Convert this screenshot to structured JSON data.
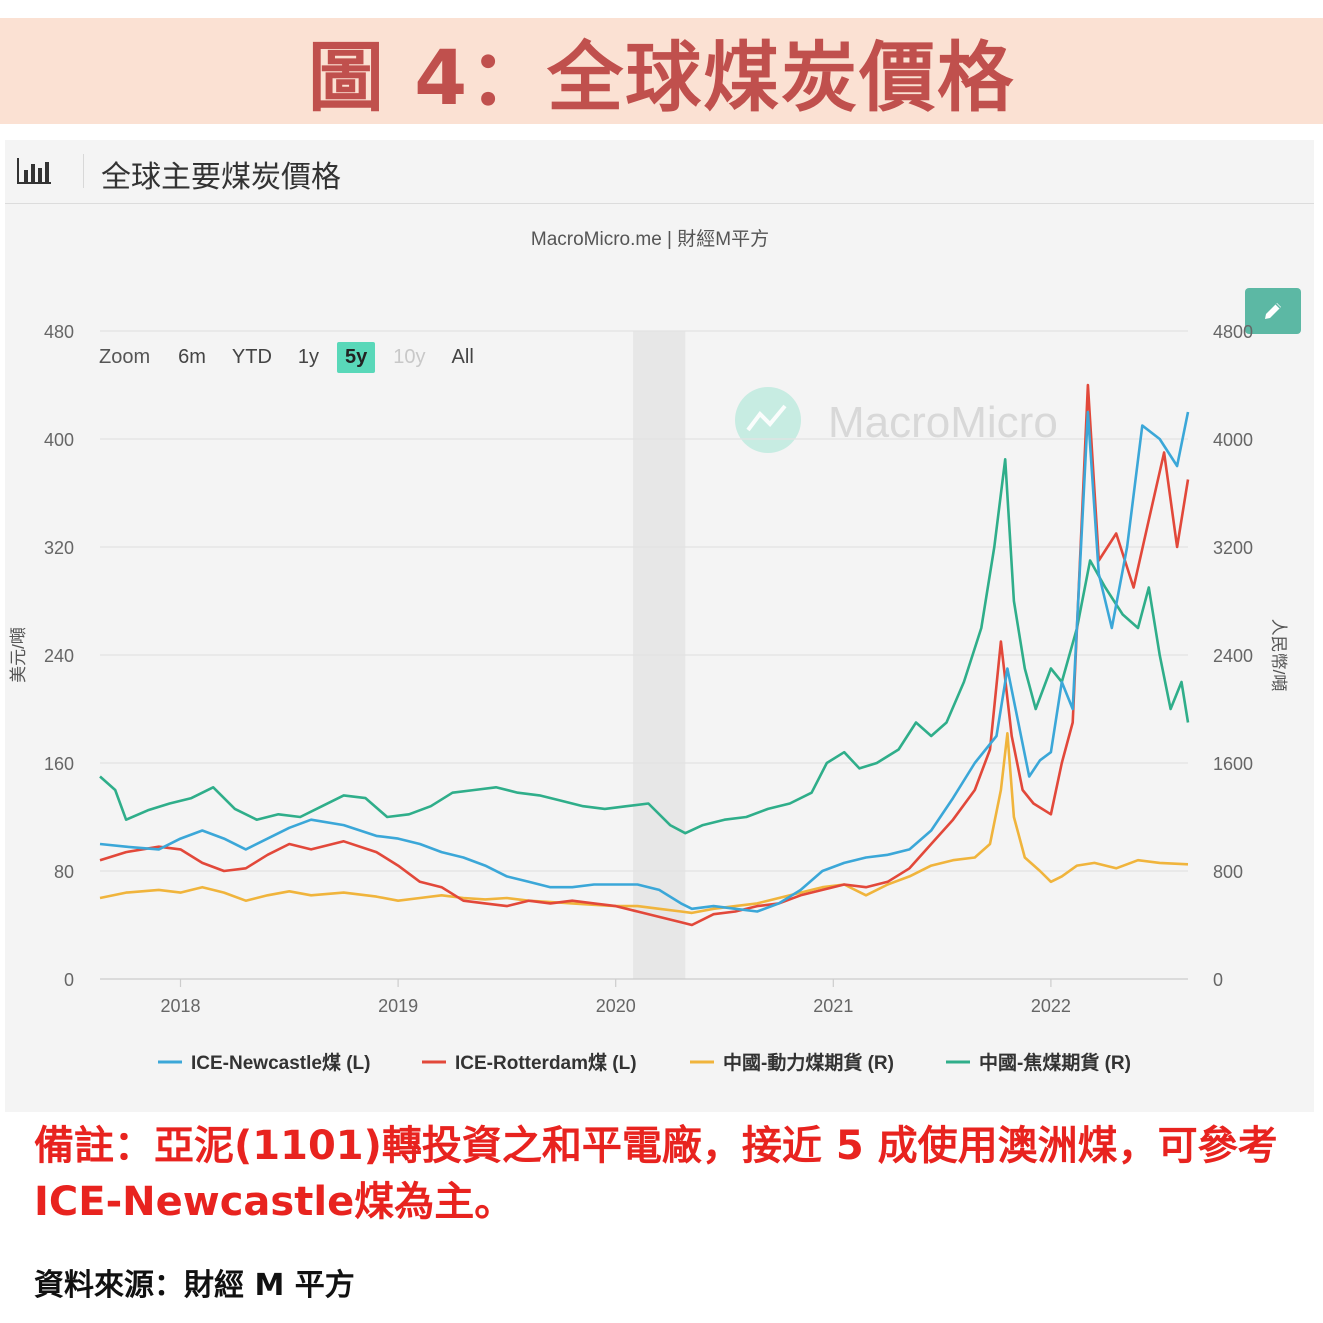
{
  "banner": {
    "title": "圖 4：全球煤炭價格"
  },
  "panel": {
    "title": "全球主要煤炭價格",
    "icon": "bar-chart-icon",
    "edit_icon": "pencil-icon"
  },
  "chart_credit": "MacroMicro.me | 財經M平方",
  "watermark": "MacroMicro",
  "zoom": {
    "label": "Zoom",
    "options": [
      "6m",
      "YTD",
      "1y",
      "5y",
      "10y",
      "All"
    ],
    "active": "5y",
    "disabled": [
      "10y"
    ]
  },
  "note": "備註：亞泥(1101)轉投資之和平電廠，接近 5 成使用澳洲煤，可參考 ICE-Newcastle煤為主。",
  "source": "資料來源：財經 M 平方",
  "colors": {
    "newcastle": "#3ba7d8",
    "rotterdam": "#e2483a",
    "thermal": "#f0b43c",
    "coking": "#2fae8a",
    "accent": "#5cb8a4",
    "note": "#e8231f",
    "title": "#c0504d"
  },
  "chart_data": {
    "type": "line",
    "xlabel": "",
    "ylabel_left": "美元/噸",
    "ylabel_right": "人民幣/噸",
    "xlim": [
      2017.63,
      2022.63
    ],
    "ylim_left": [
      0,
      480
    ],
    "ylim_right": [
      0,
      4800
    ],
    "y_ticks_left": [
      "0",
      "80",
      "160",
      "240",
      "320",
      "400",
      "480"
    ],
    "y_ticks_right": [
      "0",
      "800",
      "1600",
      "2400",
      "3200",
      "4000",
      "4800"
    ],
    "x_ticks": [
      {
        "x": 2018,
        "label": "2018"
      },
      {
        "x": 2019,
        "label": "2019"
      },
      {
        "x": 2020,
        "label": "2020"
      },
      {
        "x": 2021,
        "label": "2021"
      },
      {
        "x": 2022,
        "label": "2022"
      }
    ],
    "shaded_region": [
      2020.08,
      2020.32
    ],
    "grid": true,
    "legend_position": "bottom",
    "series": [
      {
        "name": "ICE-Newcastle煤 (L)",
        "axis": "left",
        "color": "#3ba7d8",
        "points": [
          [
            2017.63,
            100
          ],
          [
            2017.75,
            98
          ],
          [
            2017.9,
            96
          ],
          [
            2018.0,
            104
          ],
          [
            2018.1,
            110
          ],
          [
            2018.2,
            104
          ],
          [
            2018.3,
            96
          ],
          [
            2018.4,
            104
          ],
          [
            2018.5,
            112
          ],
          [
            2018.6,
            118
          ],
          [
            2018.75,
            114
          ],
          [
            2018.9,
            106
          ],
          [
            2019.0,
            104
          ],
          [
            2019.1,
            100
          ],
          [
            2019.2,
            94
          ],
          [
            2019.3,
            90
          ],
          [
            2019.4,
            84
          ],
          [
            2019.5,
            76
          ],
          [
            2019.6,
            72
          ],
          [
            2019.7,
            68
          ],
          [
            2019.8,
            68
          ],
          [
            2019.9,
            70
          ],
          [
            2020.0,
            70
          ],
          [
            2020.1,
            70
          ],
          [
            2020.2,
            66
          ],
          [
            2020.3,
            56
          ],
          [
            2020.35,
            52
          ],
          [
            2020.45,
            54
          ],
          [
            2020.55,
            52
          ],
          [
            2020.65,
            50
          ],
          [
            2020.75,
            56
          ],
          [
            2020.85,
            66
          ],
          [
            2020.95,
            80
          ],
          [
            2021.05,
            86
          ],
          [
            2021.15,
            90
          ],
          [
            2021.25,
            92
          ],
          [
            2021.35,
            96
          ],
          [
            2021.45,
            110
          ],
          [
            2021.55,
            134
          ],
          [
            2021.65,
            160
          ],
          [
            2021.75,
            180
          ],
          [
            2021.8,
            230
          ],
          [
            2021.85,
            190
          ],
          [
            2021.9,
            150
          ],
          [
            2021.95,
            162
          ],
          [
            2022.0,
            168
          ],
          [
            2022.05,
            220
          ],
          [
            2022.1,
            200
          ],
          [
            2022.17,
            420
          ],
          [
            2022.22,
            300
          ],
          [
            2022.28,
            260
          ],
          [
            2022.35,
            320
          ],
          [
            2022.42,
            410
          ],
          [
            2022.5,
            400
          ],
          [
            2022.58,
            380
          ],
          [
            2022.63,
            420
          ]
        ]
      },
      {
        "name": "ICE-Rotterdam煤 (L)",
        "axis": "left",
        "color": "#e2483a",
        "points": [
          [
            2017.63,
            88
          ],
          [
            2017.75,
            94
          ],
          [
            2017.9,
            98
          ],
          [
            2018.0,
            96
          ],
          [
            2018.1,
            86
          ],
          [
            2018.2,
            80
          ],
          [
            2018.3,
            82
          ],
          [
            2018.4,
            92
          ],
          [
            2018.5,
            100
          ],
          [
            2018.6,
            96
          ],
          [
            2018.75,
            102
          ],
          [
            2018.9,
            94
          ],
          [
            2019.0,
            84
          ],
          [
            2019.1,
            72
          ],
          [
            2019.2,
            68
          ],
          [
            2019.3,
            58
          ],
          [
            2019.4,
            56
          ],
          [
            2019.5,
            54
          ],
          [
            2019.6,
            58
          ],
          [
            2019.7,
            56
          ],
          [
            2019.8,
            58
          ],
          [
            2019.9,
            56
          ],
          [
            2020.0,
            54
          ],
          [
            2020.1,
            50
          ],
          [
            2020.2,
            46
          ],
          [
            2020.3,
            42
          ],
          [
            2020.35,
            40
          ],
          [
            2020.45,
            48
          ],
          [
            2020.55,
            50
          ],
          [
            2020.65,
            54
          ],
          [
            2020.75,
            56
          ],
          [
            2020.85,
            62
          ],
          [
            2020.95,
            66
          ],
          [
            2021.05,
            70
          ],
          [
            2021.15,
            68
          ],
          [
            2021.25,
            72
          ],
          [
            2021.35,
            82
          ],
          [
            2021.45,
            100
          ],
          [
            2021.55,
            118
          ],
          [
            2021.65,
            140
          ],
          [
            2021.72,
            170
          ],
          [
            2021.77,
            250
          ],
          [
            2021.82,
            180
          ],
          [
            2021.87,
            140
          ],
          [
            2021.92,
            130
          ],
          [
            2022.0,
            122
          ],
          [
            2022.05,
            160
          ],
          [
            2022.1,
            190
          ],
          [
            2022.17,
            440
          ],
          [
            2022.22,
            310
          ],
          [
            2022.3,
            330
          ],
          [
            2022.38,
            290
          ],
          [
            2022.45,
            340
          ],
          [
            2022.52,
            390
          ],
          [
            2022.58,
            320
          ],
          [
            2022.63,
            370
          ]
        ]
      },
      {
        "name": "中國-動力煤期貨 (R)",
        "axis": "right",
        "color": "#f0b43c",
        "points": [
          [
            2017.63,
            600
          ],
          [
            2017.75,
            640
          ],
          [
            2017.9,
            660
          ],
          [
            2018.0,
            640
          ],
          [
            2018.1,
            680
          ],
          [
            2018.2,
            640
          ],
          [
            2018.3,
            580
          ],
          [
            2018.4,
            620
          ],
          [
            2018.5,
            650
          ],
          [
            2018.6,
            620
          ],
          [
            2018.75,
            640
          ],
          [
            2018.9,
            610
          ],
          [
            2019.0,
            580
          ],
          [
            2019.1,
            600
          ],
          [
            2019.2,
            620
          ],
          [
            2019.3,
            600
          ],
          [
            2019.4,
            590
          ],
          [
            2019.5,
            600
          ],
          [
            2019.6,
            580
          ],
          [
            2019.7,
            570
          ],
          [
            2019.8,
            560
          ],
          [
            2019.9,
            550
          ],
          [
            2020.0,
            540
          ],
          [
            2020.1,
            540
          ],
          [
            2020.2,
            520
          ],
          [
            2020.3,
            500
          ],
          [
            2020.35,
            490
          ],
          [
            2020.45,
            520
          ],
          [
            2020.55,
            540
          ],
          [
            2020.65,
            560
          ],
          [
            2020.75,
            600
          ],
          [
            2020.85,
            640
          ],
          [
            2020.95,
            680
          ],
          [
            2021.05,
            700
          ],
          [
            2021.15,
            620
          ],
          [
            2021.25,
            700
          ],
          [
            2021.35,
            760
          ],
          [
            2021.45,
            840
          ],
          [
            2021.55,
            880
          ],
          [
            2021.65,
            900
          ],
          [
            2021.72,
            1000
          ],
          [
            2021.77,
            1400
          ],
          [
            2021.8,
            1820
          ],
          [
            2021.83,
            1200
          ],
          [
            2021.88,
            900
          ],
          [
            2021.95,
            800
          ],
          [
            2022.0,
            720
          ],
          [
            2022.05,
            760
          ],
          [
            2022.12,
            840
          ],
          [
            2022.2,
            860
          ],
          [
            2022.3,
            820
          ],
          [
            2022.4,
            880
          ],
          [
            2022.5,
            860
          ],
          [
            2022.63,
            850
          ]
        ]
      },
      {
        "name": "中國-焦煤期貨 (R)",
        "axis": "right",
        "color": "#2fae8a",
        "points": [
          [
            2017.63,
            1500
          ],
          [
            2017.7,
            1400
          ],
          [
            2017.75,
            1180
          ],
          [
            2017.85,
            1250
          ],
          [
            2017.95,
            1300
          ],
          [
            2018.05,
            1340
          ],
          [
            2018.15,
            1420
          ],
          [
            2018.25,
            1260
          ],
          [
            2018.35,
            1180
          ],
          [
            2018.45,
            1220
          ],
          [
            2018.55,
            1200
          ],
          [
            2018.65,
            1280
          ],
          [
            2018.75,
            1360
          ],
          [
            2018.85,
            1340
          ],
          [
            2018.95,
            1200
          ],
          [
            2019.05,
            1220
          ],
          [
            2019.15,
            1280
          ],
          [
            2019.25,
            1380
          ],
          [
            2019.35,
            1400
          ],
          [
            2019.45,
            1420
          ],
          [
            2019.55,
            1380
          ],
          [
            2019.65,
            1360
          ],
          [
            2019.75,
            1320
          ],
          [
            2019.85,
            1280
          ],
          [
            2019.95,
            1260
          ],
          [
            2020.05,
            1280
          ],
          [
            2020.15,
            1300
          ],
          [
            2020.25,
            1140
          ],
          [
            2020.32,
            1080
          ],
          [
            2020.4,
            1140
          ],
          [
            2020.5,
            1180
          ],
          [
            2020.6,
            1200
          ],
          [
            2020.7,
            1260
          ],
          [
            2020.8,
            1300
          ],
          [
            2020.9,
            1380
          ],
          [
            2020.97,
            1600
          ],
          [
            2021.05,
            1680
          ],
          [
            2021.12,
            1560
          ],
          [
            2021.2,
            1600
          ],
          [
            2021.3,
            1700
          ],
          [
            2021.38,
            1900
          ],
          [
            2021.45,
            1800
          ],
          [
            2021.52,
            1900
          ],
          [
            2021.6,
            2200
          ],
          [
            2021.68,
            2600
          ],
          [
            2021.74,
            3200
          ],
          [
            2021.79,
            3850
          ],
          [
            2021.83,
            2800
          ],
          [
            2021.88,
            2300
          ],
          [
            2021.93,
            2000
          ],
          [
            2022.0,
            2300
          ],
          [
            2022.05,
            2200
          ],
          [
            2022.12,
            2600
          ],
          [
            2022.18,
            3100
          ],
          [
            2022.25,
            2900
          ],
          [
            2022.33,
            2700
          ],
          [
            2022.4,
            2600
          ],
          [
            2022.45,
            2900
          ],
          [
            2022.5,
            2400
          ],
          [
            2022.55,
            2000
          ],
          [
            2022.6,
            2200
          ],
          [
            2022.63,
            1900
          ]
        ]
      }
    ]
  }
}
